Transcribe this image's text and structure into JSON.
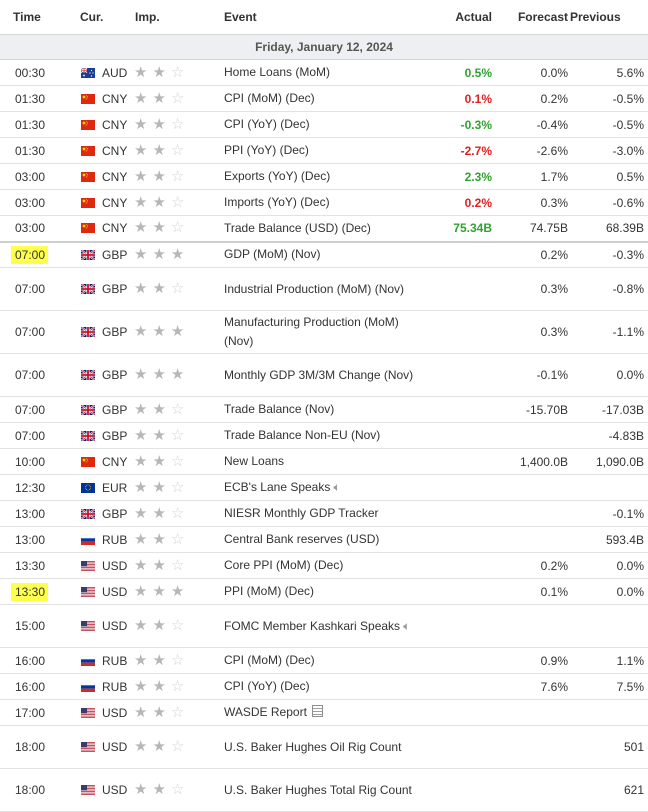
{
  "header": {
    "time": "Time",
    "currency": "Cur.",
    "importance": "Imp.",
    "event": "Event",
    "actual": "Actual",
    "forecast": "Forecast",
    "previous": "Previous"
  },
  "date_label": "Friday, January 12, 2024",
  "colors": {
    "positive": "#2fa32f",
    "negative": "#e02020",
    "highlight": "#ffff4d",
    "date_bg": "#eeeff2"
  },
  "rows": [
    {
      "time": "00:30",
      "currency": "AUD",
      "flag": "au-flag",
      "stars": 2,
      "event": "Home Loans (MoM)",
      "actual": "0.5%",
      "actual_color": "positive",
      "forecast": "0.0%",
      "previous": "5.6%",
      "h": 26
    },
    {
      "time": "01:30",
      "currency": "CNY",
      "flag": "cn-flag",
      "stars": 2,
      "event": "CPI (MoM) (Dec)",
      "actual": "0.1%",
      "actual_color": "negative",
      "forecast": "0.2%",
      "previous": "-0.5%",
      "h": 26
    },
    {
      "time": "01:30",
      "currency": "CNY",
      "flag": "cn-flag",
      "stars": 2,
      "event": "CPI (YoY) (Dec)",
      "actual": "-0.3%",
      "actual_color": "positive",
      "forecast": "-0.4%",
      "previous": "-0.5%",
      "h": 26
    },
    {
      "time": "01:30",
      "currency": "CNY",
      "flag": "cn-flag",
      "stars": 2,
      "event": "PPI (YoY) (Dec)",
      "actual": "-2.7%",
      "actual_color": "negative",
      "forecast": "-2.6%",
      "previous": "-3.0%",
      "h": 26
    },
    {
      "time": "03:00",
      "currency": "CNY",
      "flag": "cn-flag",
      "stars": 2,
      "event": "Exports (YoY) (Dec)",
      "actual": "2.3%",
      "actual_color": "positive",
      "forecast": "1.7%",
      "previous": "0.5%",
      "h": 26
    },
    {
      "time": "03:00",
      "currency": "CNY",
      "flag": "cn-flag",
      "stars": 2,
      "event": "Imports (YoY) (Dec)",
      "actual": "0.2%",
      "actual_color": "negative",
      "forecast": "0.3%",
      "previous": "-0.6%",
      "h": 26
    },
    {
      "time": "03:00",
      "currency": "CNY",
      "flag": "cn-flag",
      "stars": 2,
      "event": "Trade Balance (USD) (Dec)",
      "actual": "75.34B",
      "actual_color": "positive",
      "forecast": "74.75B",
      "previous": "68.39B",
      "h": 26,
      "divider": true
    },
    {
      "time": "07:00",
      "currency": "GBP",
      "flag": "gb-flag",
      "stars": 3,
      "event": "GDP (MoM) (Nov)",
      "actual": "",
      "forecast": "0.2%",
      "previous": "-0.3%",
      "h": 26,
      "highlight": true
    },
    {
      "time": "07:00",
      "currency": "GBP",
      "flag": "gb-flag",
      "stars": 2,
      "event": "Industrial Production (MoM) (Nov)",
      "actual": "",
      "forecast": "0.3%",
      "previous": "-0.8%",
      "h": 43
    },
    {
      "time": "07:00",
      "currency": "GBP",
      "flag": "gb-flag",
      "stars": 3,
      "event": "Manufacturing Production (MoM) (Nov)",
      "actual": "",
      "forecast": "0.3%",
      "previous": "-1.1%",
      "h": 43
    },
    {
      "time": "07:00",
      "currency": "GBP",
      "flag": "gb-flag",
      "stars": 3,
      "event": "Monthly GDP 3M/3M Change (Nov)",
      "actual": "",
      "forecast": "-0.1%",
      "previous": "0.0%",
      "h": 43
    },
    {
      "time": "07:00",
      "currency": "GBP",
      "flag": "gb-flag",
      "stars": 2,
      "event": "Trade Balance (Nov)",
      "actual": "",
      "forecast": "-15.70B",
      "previous": "-17.03B",
      "h": 26
    },
    {
      "time": "07:00",
      "currency": "GBP",
      "flag": "gb-flag",
      "stars": 2,
      "event": "Trade Balance Non-EU (Nov)",
      "actual": "",
      "forecast": "",
      "previous": "-4.83B",
      "h": 26
    },
    {
      "time": "10:00",
      "currency": "CNY",
      "flag": "cn-flag",
      "stars": 2,
      "event": "New Loans",
      "actual": "",
      "forecast": "1,400.0B",
      "previous": "1,090.0B",
      "h": 26
    },
    {
      "time": "12:30",
      "currency": "EUR",
      "flag": "eu-flag",
      "stars": 2,
      "event": "ECB's Lane Speaks",
      "speaker": true,
      "actual": "",
      "forecast": "",
      "previous": "",
      "h": 26
    },
    {
      "time": "13:00",
      "currency": "GBP",
      "flag": "gb-flag",
      "stars": 2,
      "event": "NIESR Monthly GDP Tracker",
      "actual": "",
      "forecast": "",
      "previous": "-0.1%",
      "h": 26
    },
    {
      "time": "13:00",
      "currency": "RUB",
      "flag": "ru-flag",
      "stars": 2,
      "event": "Central Bank reserves (USD)",
      "actual": "",
      "forecast": "",
      "previous": "593.4B",
      "h": 26
    },
    {
      "time": "13:30",
      "currency": "USD",
      "flag": "us-flag",
      "stars": 2,
      "event": "Core PPI (MoM) (Dec)",
      "actual": "",
      "forecast": "0.2%",
      "previous": "0.0%",
      "h": 26
    },
    {
      "time": "13:30",
      "currency": "USD",
      "flag": "us-flag",
      "stars": 3,
      "event": "PPI (MoM) (Dec)",
      "actual": "",
      "forecast": "0.1%",
      "previous": "0.0%",
      "h": 26,
      "highlight": true
    },
    {
      "time": "15:00",
      "currency": "USD",
      "flag": "us-flag",
      "stars": 2,
      "event": "FOMC Member Kashkari Speaks",
      "speaker": true,
      "actual": "",
      "forecast": "",
      "previous": "",
      "h": 43
    },
    {
      "time": "16:00",
      "currency": "RUB",
      "flag": "ru-flag",
      "stars": 2,
      "event": "CPI (MoM) (Dec)",
      "actual": "",
      "forecast": "0.9%",
      "previous": "1.1%",
      "h": 26
    },
    {
      "time": "16:00",
      "currency": "RUB",
      "flag": "ru-flag",
      "stars": 2,
      "event": "CPI (YoY) (Dec)",
      "actual": "",
      "forecast": "7.6%",
      "previous": "7.5%",
      "h": 26
    },
    {
      "time": "17:00",
      "currency": "USD",
      "flag": "us-flag",
      "stars": 2,
      "event": "WASDE Report",
      "report": true,
      "actual": "",
      "forecast": "",
      "previous": "",
      "h": 26
    },
    {
      "time": "18:00",
      "currency": "USD",
      "flag": "us-flag",
      "stars": 2,
      "event": "U.S. Baker Hughes Oil Rig Count",
      "actual": "",
      "forecast": "",
      "previous": "501",
      "h": 43
    },
    {
      "time": "18:00",
      "currency": "USD",
      "flag": "us-flag",
      "stars": 2,
      "event": "U.S. Baker Hughes Total Rig Count",
      "actual": "",
      "forecast": "",
      "previous": "621",
      "h": 43
    }
  ]
}
